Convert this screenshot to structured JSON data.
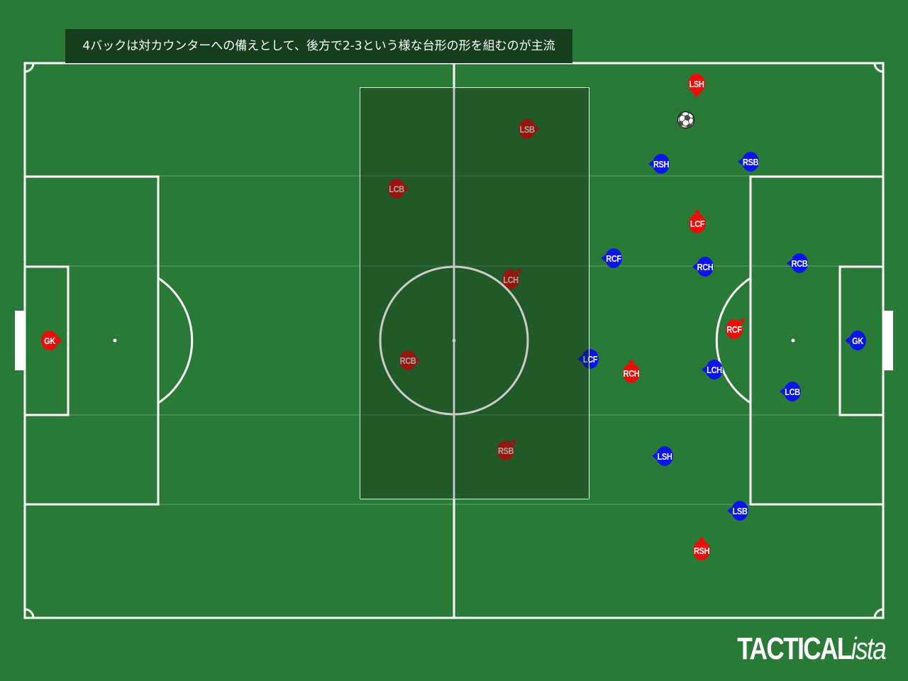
{
  "caption": "4バックは対カウンターへの備えとして、後方で2-3という様な台形の形を組むのが主流",
  "colors": {
    "pitch": "#2a7a37",
    "red_team": "#f00a0a",
    "blue_team": "#0a14f0",
    "highlight_zone": "#1b5227"
  },
  "ball_icon": "soccer-ball-icon",
  "red_team": [
    {
      "label": "GK"
    },
    {
      "label": "LSB"
    },
    {
      "label": "LCB"
    },
    {
      "label": "LCH"
    },
    {
      "label": "RCB"
    },
    {
      "label": "RSB"
    },
    {
      "label": "LSH"
    },
    {
      "label": "LCF"
    },
    {
      "label": "RCF"
    },
    {
      "label": "RCH"
    },
    {
      "label": "RSH"
    }
  ],
  "blue_team": [
    {
      "label": "RSH"
    },
    {
      "label": "RSB"
    },
    {
      "label": "RCF"
    },
    {
      "label": "RCH"
    },
    {
      "label": "RCB"
    },
    {
      "label": "GK"
    },
    {
      "label": "LCF"
    },
    {
      "label": "LCH"
    },
    {
      "label": "LCB"
    },
    {
      "label": "LSH"
    },
    {
      "label": "LSB"
    }
  ],
  "logo": {
    "main": "TACTICAL",
    "suffix": "ista"
  }
}
